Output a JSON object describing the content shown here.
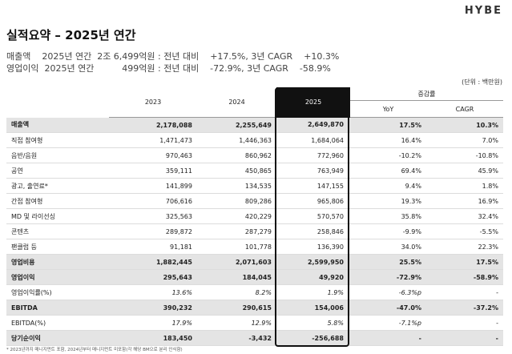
{
  "brand": "HYBE",
  "title": "실적요약 – 2025년 연간",
  "summary": {
    "revenue_line": "매출액    2025년 연간  2조 6,499억원 : 전년 대비    +17.5%, 3년 CAGR    +10.3%",
    "op_line": "영업이익  2025년 연간          499억원 : 전년 대비    -72.9%, 3년 CAGR    -58.9%"
  },
  "unit": "(단위 : 백만원)",
  "table": {
    "headers": {
      "y2023": "2023",
      "y2024": "2024",
      "y2025": "2025",
      "growth": "증감률",
      "yoy": "YoY",
      "cagr": "CAGR"
    },
    "rows": [
      {
        "label": "매출액",
        "y2023": "2,178,088",
        "y2024": "2,255,649",
        "y2025": "2,649,870",
        "yoy": "17.5%",
        "cagr": "10.3%"
      },
      {
        "label": "직접 참여형",
        "y2023": "1,471,473",
        "y2024": "1,446,363",
        "y2025": "1,684,064",
        "yoy": "16.4%",
        "cagr": "7.0%"
      },
      {
        "label": "음반/음원",
        "y2023": "970,463",
        "y2024": "860,962",
        "y2025": "772,960",
        "yoy": "-10.2%",
        "cagr": "-10.8%"
      },
      {
        "label": "공연",
        "y2023": "359,111",
        "y2024": "450,865",
        "y2025": "763,949",
        "yoy": "69.4%",
        "cagr": "45.9%"
      },
      {
        "label": "광고, 출연료*",
        "y2023": "141,899",
        "y2024": "134,535",
        "y2025": "147,155",
        "yoy": "9.4%",
        "cagr": "1.8%"
      },
      {
        "label": "간접 참여형",
        "y2023": "706,616",
        "y2024": "809,286",
        "y2025": "965,806",
        "yoy": "19.3%",
        "cagr": "16.9%"
      },
      {
        "label": "MD 및 라이선싱",
        "y2023": "325,563",
        "y2024": "420,229",
        "y2025": "570,570",
        "yoy": "35.8%",
        "cagr": "32.4%"
      },
      {
        "label": "콘텐츠",
        "y2023": "289,872",
        "y2024": "287,279",
        "y2025": "258,846",
        "yoy": "-9.9%",
        "cagr": "-5.5%"
      },
      {
        "label": "팬클럽 등",
        "y2023": "91,181",
        "y2024": "101,778",
        "y2025": "136,390",
        "yoy": "34.0%",
        "cagr": "22.3%"
      },
      {
        "label": "영업비용",
        "y2023": "1,882,445",
        "y2024": "2,071,603",
        "y2025": "2,599,950",
        "yoy": "25.5%",
        "cagr": "17.5%"
      },
      {
        "label": "영업이익",
        "y2023": "295,643",
        "y2024": "184,045",
        "y2025": "49,920",
        "yoy": "-72.9%",
        "cagr": "-58.9%"
      },
      {
        "label": "영업이익률(%)",
        "y2023": "13.6%",
        "y2024": "8.2%",
        "y2025": "1.9%",
        "yoy": "-6.3%p",
        "cagr": "-"
      },
      {
        "label": "EBITDA",
        "y2023": "390,232",
        "y2024": "290,615",
        "y2025": "154,006",
        "yoy": "-47.0%",
        "cagr": "-37.2%"
      },
      {
        "label": "EBITDA(%)",
        "y2023": "17.9%",
        "y2024": "12.9%",
        "y2025": "5.8%",
        "yoy": "-7.1%p",
        "cagr": "-"
      },
      {
        "label": "당기순이익",
        "y2023": "183,450",
        "y2024": "-3,432",
        "y2025": "-256,688",
        "yoy": "-",
        "cagr": "-"
      }
    ]
  },
  "footnote": "* 2023년까지 매니지먼트 포함, 2024년부터 매니지먼트 미포함(각 해당 BM으로 분리 인식함)"
}
